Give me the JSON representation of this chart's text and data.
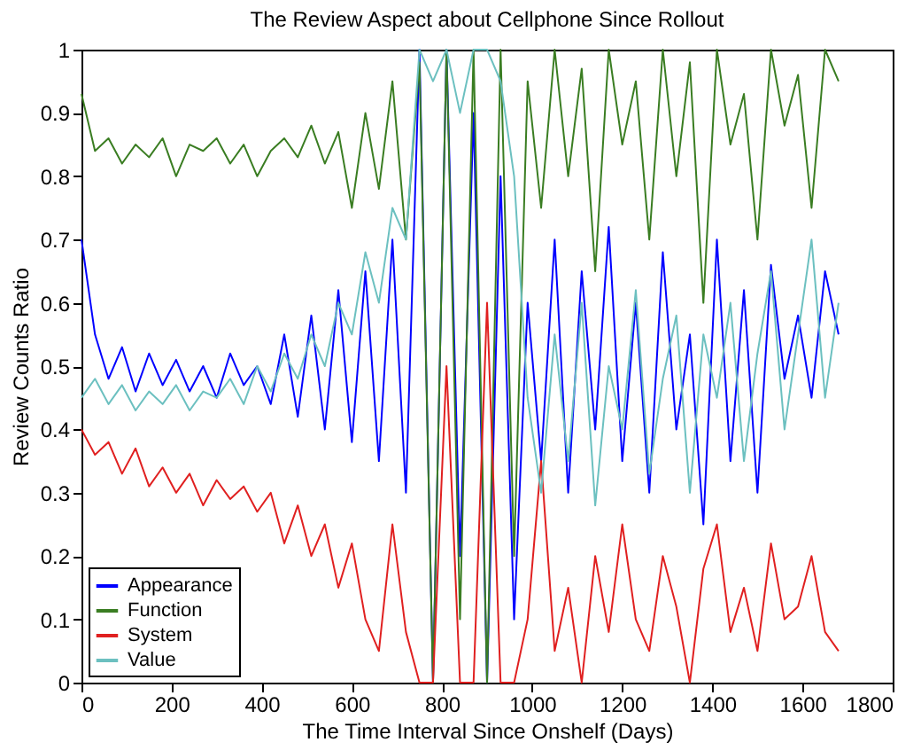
{
  "chart_data": {
    "type": "line",
    "title": "The Review Aspect about Cellphone Since Rollout",
    "xlabel": "The Time Interval Since Onshelf (Days)",
    "ylabel": "Review Counts Ratio",
    "x": [
      0,
      30,
      60,
      90,
      120,
      150,
      180,
      210,
      240,
      270,
      300,
      330,
      360,
      390,
      420,
      450,
      480,
      510,
      540,
      570,
      600,
      630,
      660,
      690,
      720,
      750,
      780,
      810,
      840,
      870,
      900,
      930,
      960,
      990,
      1020,
      1050,
      1080,
      1110,
      1140,
      1170,
      1200,
      1230,
      1260,
      1290,
      1320,
      1350,
      1380,
      1410,
      1440,
      1470,
      1500,
      1530,
      1560,
      1590,
      1620,
      1650,
      1680
    ],
    "series": [
      {
        "name": "Appearance",
        "color": "#0000ff",
        "values": [
          0.7,
          0.55,
          0.48,
          0.53,
          0.46,
          0.52,
          0.47,
          0.51,
          0.46,
          0.5,
          0.45,
          0.52,
          0.47,
          0.5,
          0.44,
          0.55,
          0.42,
          0.58,
          0.4,
          0.62,
          0.38,
          0.65,
          0.35,
          0.7,
          0.3,
          1.0,
          0.0,
          1.0,
          0.2,
          0.9,
          0.0,
          0.8,
          0.1,
          0.6,
          0.35,
          0.7,
          0.3,
          0.65,
          0.4,
          0.72,
          0.35,
          0.6,
          0.3,
          0.68,
          0.4,
          0.55,
          0.25,
          0.7,
          0.35,
          0.62,
          0.3,
          0.66,
          0.48,
          0.58,
          0.45,
          0.65,
          0.55
        ]
      },
      {
        "name": "Function",
        "color": "#3a7d22",
        "values": [
          0.93,
          0.84,
          0.86,
          0.82,
          0.85,
          0.83,
          0.86,
          0.8,
          0.85,
          0.84,
          0.86,
          0.82,
          0.85,
          0.8,
          0.84,
          0.86,
          0.83,
          0.88,
          0.82,
          0.87,
          0.75,
          0.9,
          0.78,
          0.95,
          0.7,
          0.98,
          0.0,
          1.0,
          0.1,
          1.0,
          0.0,
          1.0,
          0.2,
          0.95,
          0.75,
          1.0,
          0.8,
          0.97,
          0.65,
          1.0,
          0.85,
          0.95,
          0.7,
          1.0,
          0.8,
          0.98,
          0.6,
          1.0,
          0.85,
          0.93,
          0.7,
          1.0,
          0.88,
          0.96,
          0.75,
          1.0,
          0.95
        ]
      },
      {
        "name": "System",
        "color": "#e02020",
        "values": [
          0.4,
          0.36,
          0.38,
          0.33,
          0.37,
          0.31,
          0.34,
          0.3,
          0.33,
          0.28,
          0.32,
          0.29,
          0.31,
          0.27,
          0.3,
          0.22,
          0.28,
          0.2,
          0.25,
          0.15,
          0.22,
          0.1,
          0.05,
          0.25,
          0.08,
          0.0,
          0.0,
          0.5,
          0.0,
          0.0,
          0.6,
          0.0,
          0.0,
          0.1,
          0.35,
          0.05,
          0.15,
          0.0,
          0.2,
          0.08,
          0.25,
          0.1,
          0.05,
          0.2,
          0.12,
          0.0,
          0.18,
          0.25,
          0.08,
          0.15,
          0.05,
          0.22,
          0.1,
          0.12,
          0.2,
          0.08,
          0.05
        ]
      },
      {
        "name": "Value",
        "color": "#6cc0c0",
        "values": [
          0.45,
          0.48,
          0.44,
          0.47,
          0.43,
          0.46,
          0.44,
          0.47,
          0.43,
          0.46,
          0.45,
          0.48,
          0.44,
          0.5,
          0.46,
          0.52,
          0.48,
          0.55,
          0.5,
          0.6,
          0.55,
          0.68,
          0.6,
          0.75,
          0.7,
          1.0,
          0.95,
          1.0,
          0.9,
          1.0,
          1.0,
          0.95,
          0.8,
          0.45,
          0.3,
          0.55,
          0.35,
          0.6,
          0.28,
          0.5,
          0.4,
          0.62,
          0.33,
          0.48,
          0.58,
          0.3,
          0.55,
          0.45,
          0.6,
          0.35,
          0.52,
          0.65,
          0.4,
          0.55,
          0.7,
          0.45,
          0.6
        ]
      }
    ],
    "xlim": [
      0,
      1800
    ],
    "xticks": [
      0,
      200,
      400,
      600,
      800,
      1000,
      1200,
      1400,
      1600,
      1800
    ],
    "ylim": [
      0,
      1
    ],
    "yticks": [
      0,
      0.1,
      0.2,
      0.3,
      0.4,
      0.5,
      0.6,
      0.7,
      0.8,
      0.9,
      1
    ],
    "grid": false,
    "legend": "bottom left",
    "marker": "none",
    "line_style": "solid"
  }
}
